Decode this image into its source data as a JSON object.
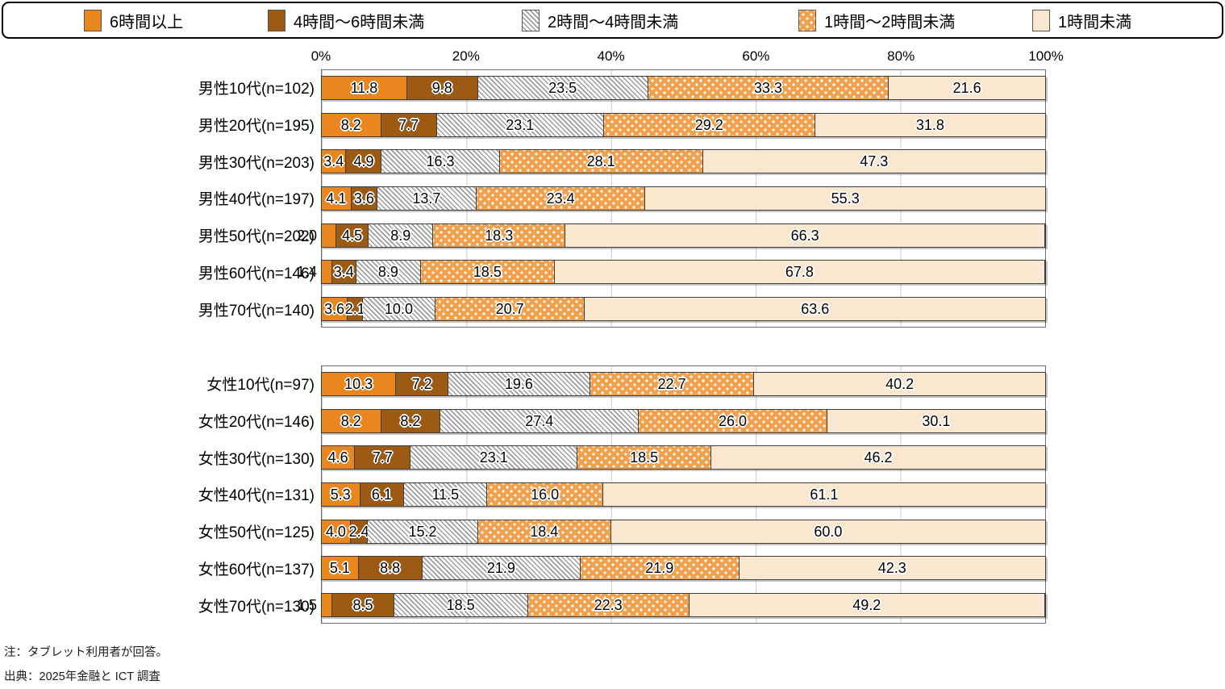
{
  "legend": {
    "items": [
      {
        "label": "6時間以上"
      },
      {
        "label": "4時間〜6時間未満"
      },
      {
        "label": "2時間〜4時間未満"
      },
      {
        "label": "1時間〜2時間未満"
      },
      {
        "label": "1時間未満"
      }
    ]
  },
  "chart_data": {
    "type": "bar",
    "stacked": true,
    "orientation": "horizontal",
    "unit": "%",
    "xlim": [
      0,
      100
    ],
    "axis_ticks": [
      "0%",
      "20%",
      "40%",
      "60%",
      "80%",
      "100%"
    ],
    "legend_position": "top",
    "grid": true,
    "series_names": [
      "6時間以上",
      "4時間〜6時間未満",
      "2時間〜4時間未満",
      "1時間〜2時間未満",
      "1時間未満"
    ],
    "groups": [
      {
        "id": "male",
        "rows": [
          {
            "label": "男性10代(n=102)",
            "values": [
              11.8,
              9.8,
              23.5,
              33.3,
              21.6
            ],
            "first_label_outside": false
          },
          {
            "label": "男性20代(n=195)",
            "values": [
              8.2,
              7.7,
              23.1,
              29.2,
              31.8
            ],
            "first_label_outside": false
          },
          {
            "label": "男性30代(n=203)",
            "values": [
              3.4,
              4.9,
              16.3,
              28.1,
              47.3
            ],
            "first_label_outside": false
          },
          {
            "label": "男性40代(n=197)",
            "values": [
              4.1,
              3.6,
              13.7,
              23.4,
              55.3
            ],
            "first_label_outside": false
          },
          {
            "label": "男性50代(n=202)",
            "values": [
              2.0,
              4.5,
              8.9,
              18.3,
              66.3
            ],
            "first_label_outside": true
          },
          {
            "label": "男性60代(n=146)",
            "values": [
              1.4,
              3.4,
              8.9,
              18.5,
              67.8
            ],
            "first_label_outside": true
          },
          {
            "label": "男性70代(n=140)",
            "values": [
              3.6,
              2.1,
              10.0,
              20.7,
              63.6
            ],
            "first_label_outside": false
          }
        ]
      },
      {
        "id": "female",
        "rows": [
          {
            "label": "女性10代(n=97)",
            "values": [
              10.3,
              7.2,
              19.6,
              22.7,
              40.2
            ],
            "first_label_outside": false
          },
          {
            "label": "女性20代(n=146)",
            "values": [
              8.2,
              8.2,
              27.4,
              26.0,
              30.1
            ],
            "first_label_outside": false
          },
          {
            "label": "女性30代(n=130)",
            "values": [
              4.6,
              7.7,
              23.1,
              18.5,
              46.2
            ],
            "first_label_outside": false
          },
          {
            "label": "女性40代(n=131)",
            "values": [
              5.3,
              6.1,
              11.5,
              16.0,
              61.1
            ],
            "first_label_outside": false
          },
          {
            "label": "女性50代(n=125)",
            "values": [
              4.0,
              2.4,
              15.2,
              18.4,
              60.0
            ],
            "first_label_outside": false
          },
          {
            "label": "女性60代(n=137)",
            "values": [
              5.1,
              8.8,
              21.9,
              21.9,
              42.3
            ],
            "first_label_outside": false
          },
          {
            "label": "女性70代(n=130)",
            "values": [
              1.5,
              8.5,
              18.5,
              22.3,
              49.2
            ],
            "first_label_outside": true
          }
        ]
      }
    ],
    "colors": {
      "seg1_orange": "#EA861E",
      "seg2_brown": "#9D5A13",
      "seg3_hatch_line": "#9C9C9C",
      "seg4_dot_bg": "#F1A04D",
      "seg5_cream": "#FAE7CF",
      "segment_border": "#3C3C3C",
      "frame_border": "#6E6E6E",
      "gridline": "#C9C9C9"
    }
  },
  "notes": {
    "line1": "注：タブレット利用者が回答。",
    "line2": "出典：2025年金融と ICT 調査"
  }
}
